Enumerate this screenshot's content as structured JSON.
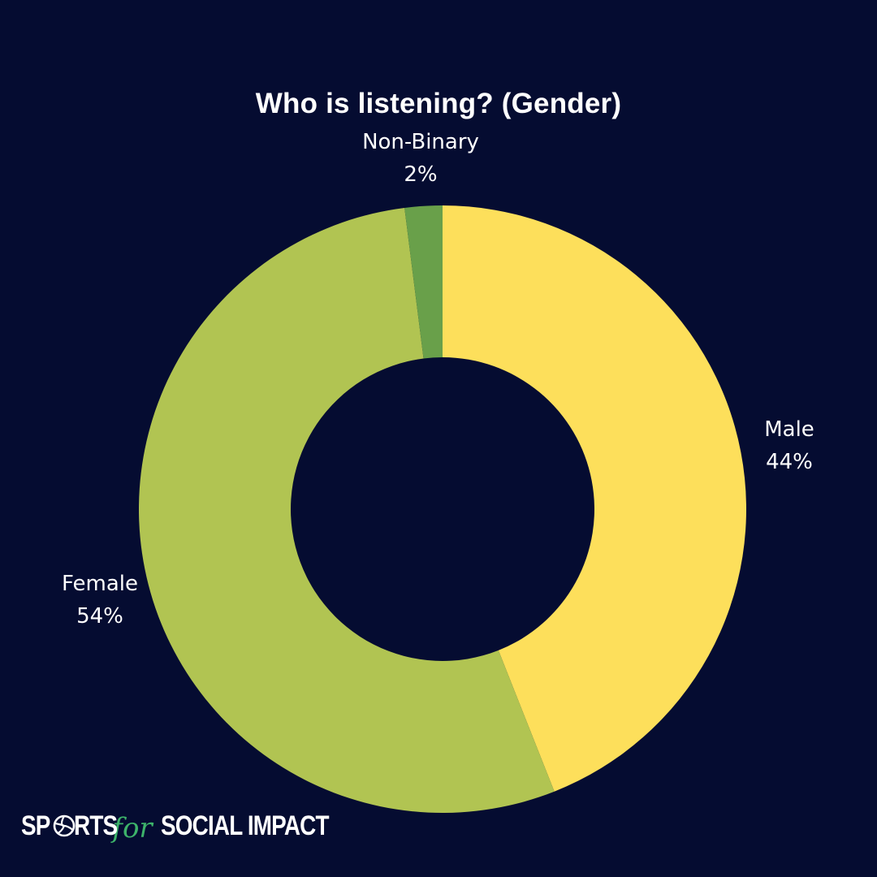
{
  "chart_data": {
    "type": "pie",
    "variant": "donut",
    "title": "Who is listening? (Gender)",
    "categories": [
      "Male",
      "Female",
      "Non-Binary"
    ],
    "values": [
      44,
      54,
      2
    ],
    "value_suffix": "%",
    "colors": [
      "#fddf5b",
      "#b1c452",
      "#69a04a"
    ],
    "background": "#050c31",
    "legend": "none",
    "labels": [
      {
        "name": "Male",
        "value_text": "44%"
      },
      {
        "name": "Female",
        "value_text": "54%"
      },
      {
        "name": "Non-Binary",
        "value_text": "2%"
      }
    ]
  },
  "brand": {
    "logo_parts": [
      "SP",
      "RTS",
      "for",
      "SOCIAL IMPACT"
    ],
    "logo_icon": "volleyball-icon",
    "logo_accent": "#3db36a",
    "logo_text_color": "#ffffff"
  }
}
